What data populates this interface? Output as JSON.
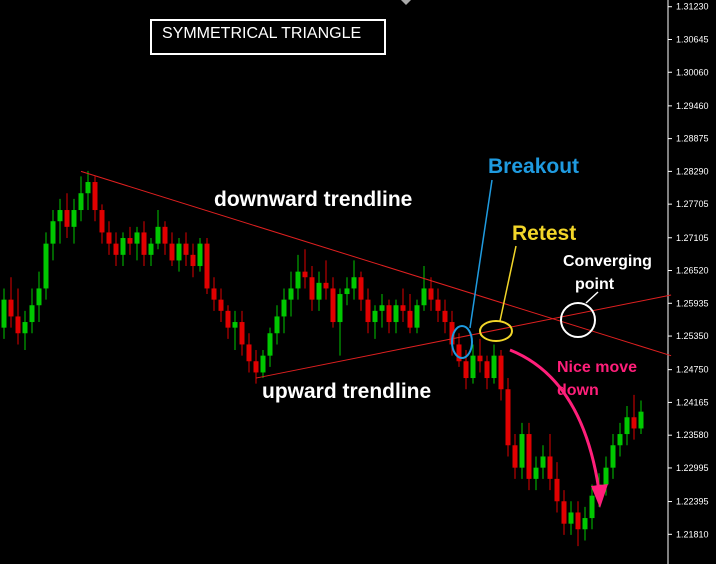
{
  "title": "SYMMETRICAL TRIANGLE",
  "colors": {
    "background": "#000000",
    "bull": "#00c800",
    "bear": "#e00000",
    "trendline": "#e02020",
    "breakout": "#1f9be0",
    "retest": "#f2d629",
    "converging": "#ffffff",
    "move": "#ff1f7a",
    "text": "#ffffff"
  },
  "annotations": {
    "downward": "downward trendline",
    "upward": "upward trendline",
    "breakout": "Breakout",
    "retest": "Retest",
    "converging_1": "Converging",
    "converging_2": "point",
    "move_1": "Nice move",
    "move_2": "down"
  },
  "chart_data": {
    "type": "candlestick",
    "title": "SYMMETRICAL TRIANGLE",
    "ylim": [
      1.2128,
      1.3135
    ],
    "ytick_labels": [
      "1.31230",
      "1.30645",
      "1.30060",
      "1.29460",
      "1.28875",
      "1.28290",
      "1.27705",
      "1.27105",
      "1.26520",
      "1.25935",
      "1.25350",
      "1.24750",
      "1.24165",
      "1.23580",
      "1.22995",
      "1.22395",
      "1.21810"
    ],
    "yticks": [
      1.3123,
      1.30645,
      1.3006,
      1.2946,
      1.28875,
      1.2829,
      1.27705,
      1.27105,
      1.2652,
      1.25935,
      1.2535,
      1.2475,
      1.24165,
      1.2358,
      1.22995,
      1.22395,
      1.2181
    ],
    "candles": [
      [
        1.255,
        1.262,
        1.253,
        1.26
      ],
      [
        1.26,
        1.264,
        1.255,
        1.257
      ],
      [
        1.257,
        1.262,
        1.252,
        1.254
      ],
      [
        1.254,
        1.258,
        1.251,
        1.256
      ],
      [
        1.256,
        1.262,
        1.254,
        1.259
      ],
      [
        1.259,
        1.265,
        1.256,
        1.262
      ],
      [
        1.262,
        1.272,
        1.26,
        1.27
      ],
      [
        1.27,
        1.276,
        1.267,
        1.274
      ],
      [
        1.274,
        1.278,
        1.27,
        1.276
      ],
      [
        1.276,
        1.279,
        1.271,
        1.273
      ],
      [
        1.273,
        1.278,
        1.27,
        1.276
      ],
      [
        1.276,
        1.282,
        1.274,
        1.279
      ],
      [
        1.279,
        1.283,
        1.276,
        1.281
      ],
      [
        1.281,
        1.282,
        1.274,
        1.276
      ],
      [
        1.276,
        1.277,
        1.27,
        1.272
      ],
      [
        1.272,
        1.274,
        1.268,
        1.27
      ],
      [
        1.27,
        1.272,
        1.266,
        1.268
      ],
      [
        1.268,
        1.272,
        1.266,
        1.271
      ],
      [
        1.271,
        1.273,
        1.268,
        1.27
      ],
      [
        1.27,
        1.273,
        1.267,
        1.272
      ],
      [
        1.272,
        1.274,
        1.266,
        1.268
      ],
      [
        1.268,
        1.271,
        1.266,
        1.27
      ],
      [
        1.27,
        1.276,
        1.269,
        1.273
      ],
      [
        1.273,
        1.274,
        1.268,
        1.27
      ],
      [
        1.27,
        1.272,
        1.266,
        1.267
      ],
      [
        1.267,
        1.271,
        1.265,
        1.27
      ],
      [
        1.27,
        1.272,
        1.266,
        1.268
      ],
      [
        1.268,
        1.27,
        1.264,
        1.266
      ],
      [
        1.266,
        1.271,
        1.265,
        1.27
      ],
      [
        1.27,
        1.271,
        1.261,
        1.262
      ],
      [
        1.262,
        1.264,
        1.258,
        1.26
      ],
      [
        1.26,
        1.262,
        1.256,
        1.258
      ],
      [
        1.258,
        1.259,
        1.253,
        1.255
      ],
      [
        1.255,
        1.258,
        1.251,
        1.256
      ],
      [
        1.256,
        1.258,
        1.25,
        1.252
      ],
      [
        1.252,
        1.254,
        1.247,
        1.249
      ],
      [
        1.249,
        1.251,
        1.245,
        1.247
      ],
      [
        1.247,
        1.251,
        1.246,
        1.25
      ],
      [
        1.25,
        1.255,
        1.248,
        1.254
      ],
      [
        1.254,
        1.259,
        1.252,
        1.257
      ],
      [
        1.257,
        1.262,
        1.254,
        1.26
      ],
      [
        1.26,
        1.265,
        1.257,
        1.262
      ],
      [
        1.262,
        1.268,
        1.26,
        1.265
      ],
      [
        1.265,
        1.269,
        1.262,
        1.264
      ],
      [
        1.264,
        1.266,
        1.258,
        1.26
      ],
      [
        1.26,
        1.265,
        1.258,
        1.263
      ],
      [
        1.263,
        1.267,
        1.26,
        1.262
      ],
      [
        1.262,
        1.264,
        1.255,
        1.256
      ],
      [
        1.256,
        1.262,
        1.25,
        1.261
      ],
      [
        1.261,
        1.264,
        1.259,
        1.262
      ],
      [
        1.262,
        1.267,
        1.26,
        1.264
      ],
      [
        1.264,
        1.265,
        1.258,
        1.26
      ],
      [
        1.26,
        1.262,
        1.254,
        1.256
      ],
      [
        1.256,
        1.259,
        1.253,
        1.258
      ],
      [
        1.258,
        1.261,
        1.255,
        1.259
      ],
      [
        1.259,
        1.26,
        1.254,
        1.256
      ],
      [
        1.256,
        1.26,
        1.254,
        1.259
      ],
      [
        1.259,
        1.262,
        1.256,
        1.258
      ],
      [
        1.258,
        1.261,
        1.254,
        1.255
      ],
      [
        1.255,
        1.26,
        1.254,
        1.259
      ],
      [
        1.259,
        1.266,
        1.258,
        1.262
      ],
      [
        1.262,
        1.264,
        1.258,
        1.26
      ],
      [
        1.26,
        1.262,
        1.256,
        1.258
      ],
      [
        1.258,
        1.26,
        1.254,
        1.256
      ],
      [
        1.256,
        1.258,
        1.25,
        1.252
      ],
      [
        1.252,
        1.254,
        1.248,
        1.249
      ],
      [
        1.249,
        1.251,
        1.244,
        1.246
      ],
      [
        1.246,
        1.252,
        1.245,
        1.25
      ],
      [
        1.25,
        1.253,
        1.247,
        1.249
      ],
      [
        1.249,
        1.25,
        1.244,
        1.246
      ],
      [
        1.246,
        1.252,
        1.245,
        1.25
      ],
      [
        1.25,
        1.251,
        1.242,
        1.244
      ],
      [
        1.244,
        1.246,
        1.232,
        1.234
      ],
      [
        1.234,
        1.236,
        1.228,
        1.23
      ],
      [
        1.23,
        1.238,
        1.228,
        1.236
      ],
      [
        1.236,
        1.238,
        1.226,
        1.228
      ],
      [
        1.228,
        1.232,
        1.226,
        1.23
      ],
      [
        1.23,
        1.234,
        1.228,
        1.232
      ],
      [
        1.232,
        1.236,
        1.226,
        1.228
      ],
      [
        1.228,
        1.231,
        1.222,
        1.224
      ],
      [
        1.224,
        1.226,
        1.218,
        1.22
      ],
      [
        1.22,
        1.224,
        1.218,
        1.222
      ],
      [
        1.222,
        1.224,
        1.216,
        1.219
      ],
      [
        1.219,
        1.223,
        1.217,
        1.221
      ],
      [
        1.221,
        1.227,
        1.219,
        1.225
      ],
      [
        1.225,
        1.229,
        1.223,
        1.227
      ],
      [
        1.227,
        1.232,
        1.225,
        1.23
      ],
      [
        1.23,
        1.236,
        1.228,
        1.234
      ],
      [
        1.234,
        1.238,
        1.232,
        1.236
      ],
      [
        1.236,
        1.241,
        1.234,
        1.239
      ],
      [
        1.239,
        1.243,
        1.235,
        1.237
      ],
      [
        1.237,
        1.242,
        1.236,
        1.24
      ]
    ],
    "trendlines": [
      {
        "name": "downward trendline",
        "from": [
          11,
          1.2829
        ],
        "to": [
          94,
          1.2505
        ]
      },
      {
        "name": "upward trendline",
        "from": [
          36,
          1.246
        ],
        "to": [
          94,
          1.2605
        ]
      }
    ]
  }
}
